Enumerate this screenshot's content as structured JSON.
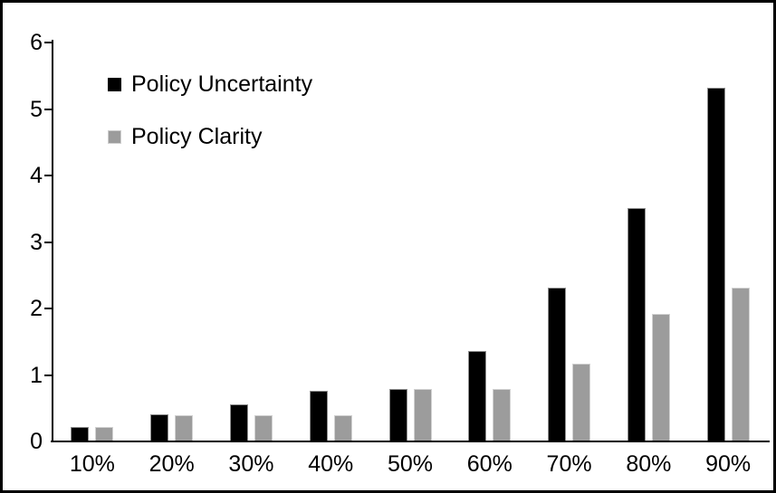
{
  "chart_data": {
    "type": "bar",
    "title": "",
    "xlabel": "",
    "ylabel": "",
    "categories": [
      "10%",
      "20%",
      "30%",
      "40%",
      "50%",
      "60%",
      "70%",
      "80%",
      "90%"
    ],
    "series": [
      {
        "name": "Policy Uncertainty",
        "color": "#000000",
        "values": [
          0.2,
          0.4,
          0.55,
          0.75,
          0.78,
          1.35,
          2.3,
          3.5,
          5.3
        ]
      },
      {
        "name": "Policy Clarity",
        "color": "#9c9c9c",
        "values": [
          0.2,
          0.38,
          0.38,
          0.38,
          0.78,
          0.78,
          1.15,
          1.9,
          2.3
        ]
      }
    ],
    "ylim": [
      0,
      6
    ],
    "y_ticks": [
      "0",
      "1",
      "2",
      "3",
      "4",
      "5",
      "6"
    ],
    "grid": false,
    "legend_position": "top-left-inside",
    "axis_color": "#000000",
    "background_color": "#ffffff",
    "frame_color": "#000000"
  }
}
